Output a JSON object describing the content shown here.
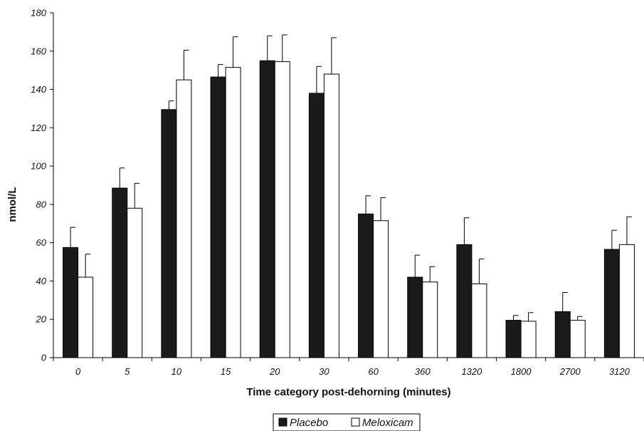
{
  "chart_data": {
    "type": "bar",
    "categories": [
      "0",
      "5",
      "10",
      "15",
      "20",
      "30",
      "60",
      "360",
      "1320",
      "1800",
      "2700",
      "3120"
    ],
    "series": [
      {
        "name": "Placebo",
        "color": "#1a1a1a",
        "values": [
          57.5,
          88.5,
          129.5,
          146.5,
          155,
          138,
          75,
          42,
          59,
          19.5,
          24,
          56.5
        ],
        "error_upper": [
          68,
          99,
          134,
          153,
          168,
          152,
          84.5,
          53.5,
          73,
          22,
          34,
          66.5
        ]
      },
      {
        "name": "Meloxicam",
        "color": "#ffffff",
        "values": [
          42,
          78,
          145,
          151.5,
          154.5,
          148,
          71.5,
          39.5,
          38.5,
          19,
          19.5,
          59
        ],
        "error_upper": [
          54,
          91,
          160.5,
          167.5,
          168.5,
          167,
          83.5,
          47.5,
          51.5,
          23.5,
          21.5,
          73.5
        ]
      }
    ],
    "xlabel": "Time category post-dehorning (minutes)",
    "ylabel": "nmol/L",
    "ylim": [
      0,
      180
    ],
    "yticks": [
      "0",
      "20",
      "40",
      "60",
      "80",
      "100",
      "120",
      "140",
      "160",
      "180"
    ],
    "grid": false,
    "legend_position": "bottom-center"
  }
}
